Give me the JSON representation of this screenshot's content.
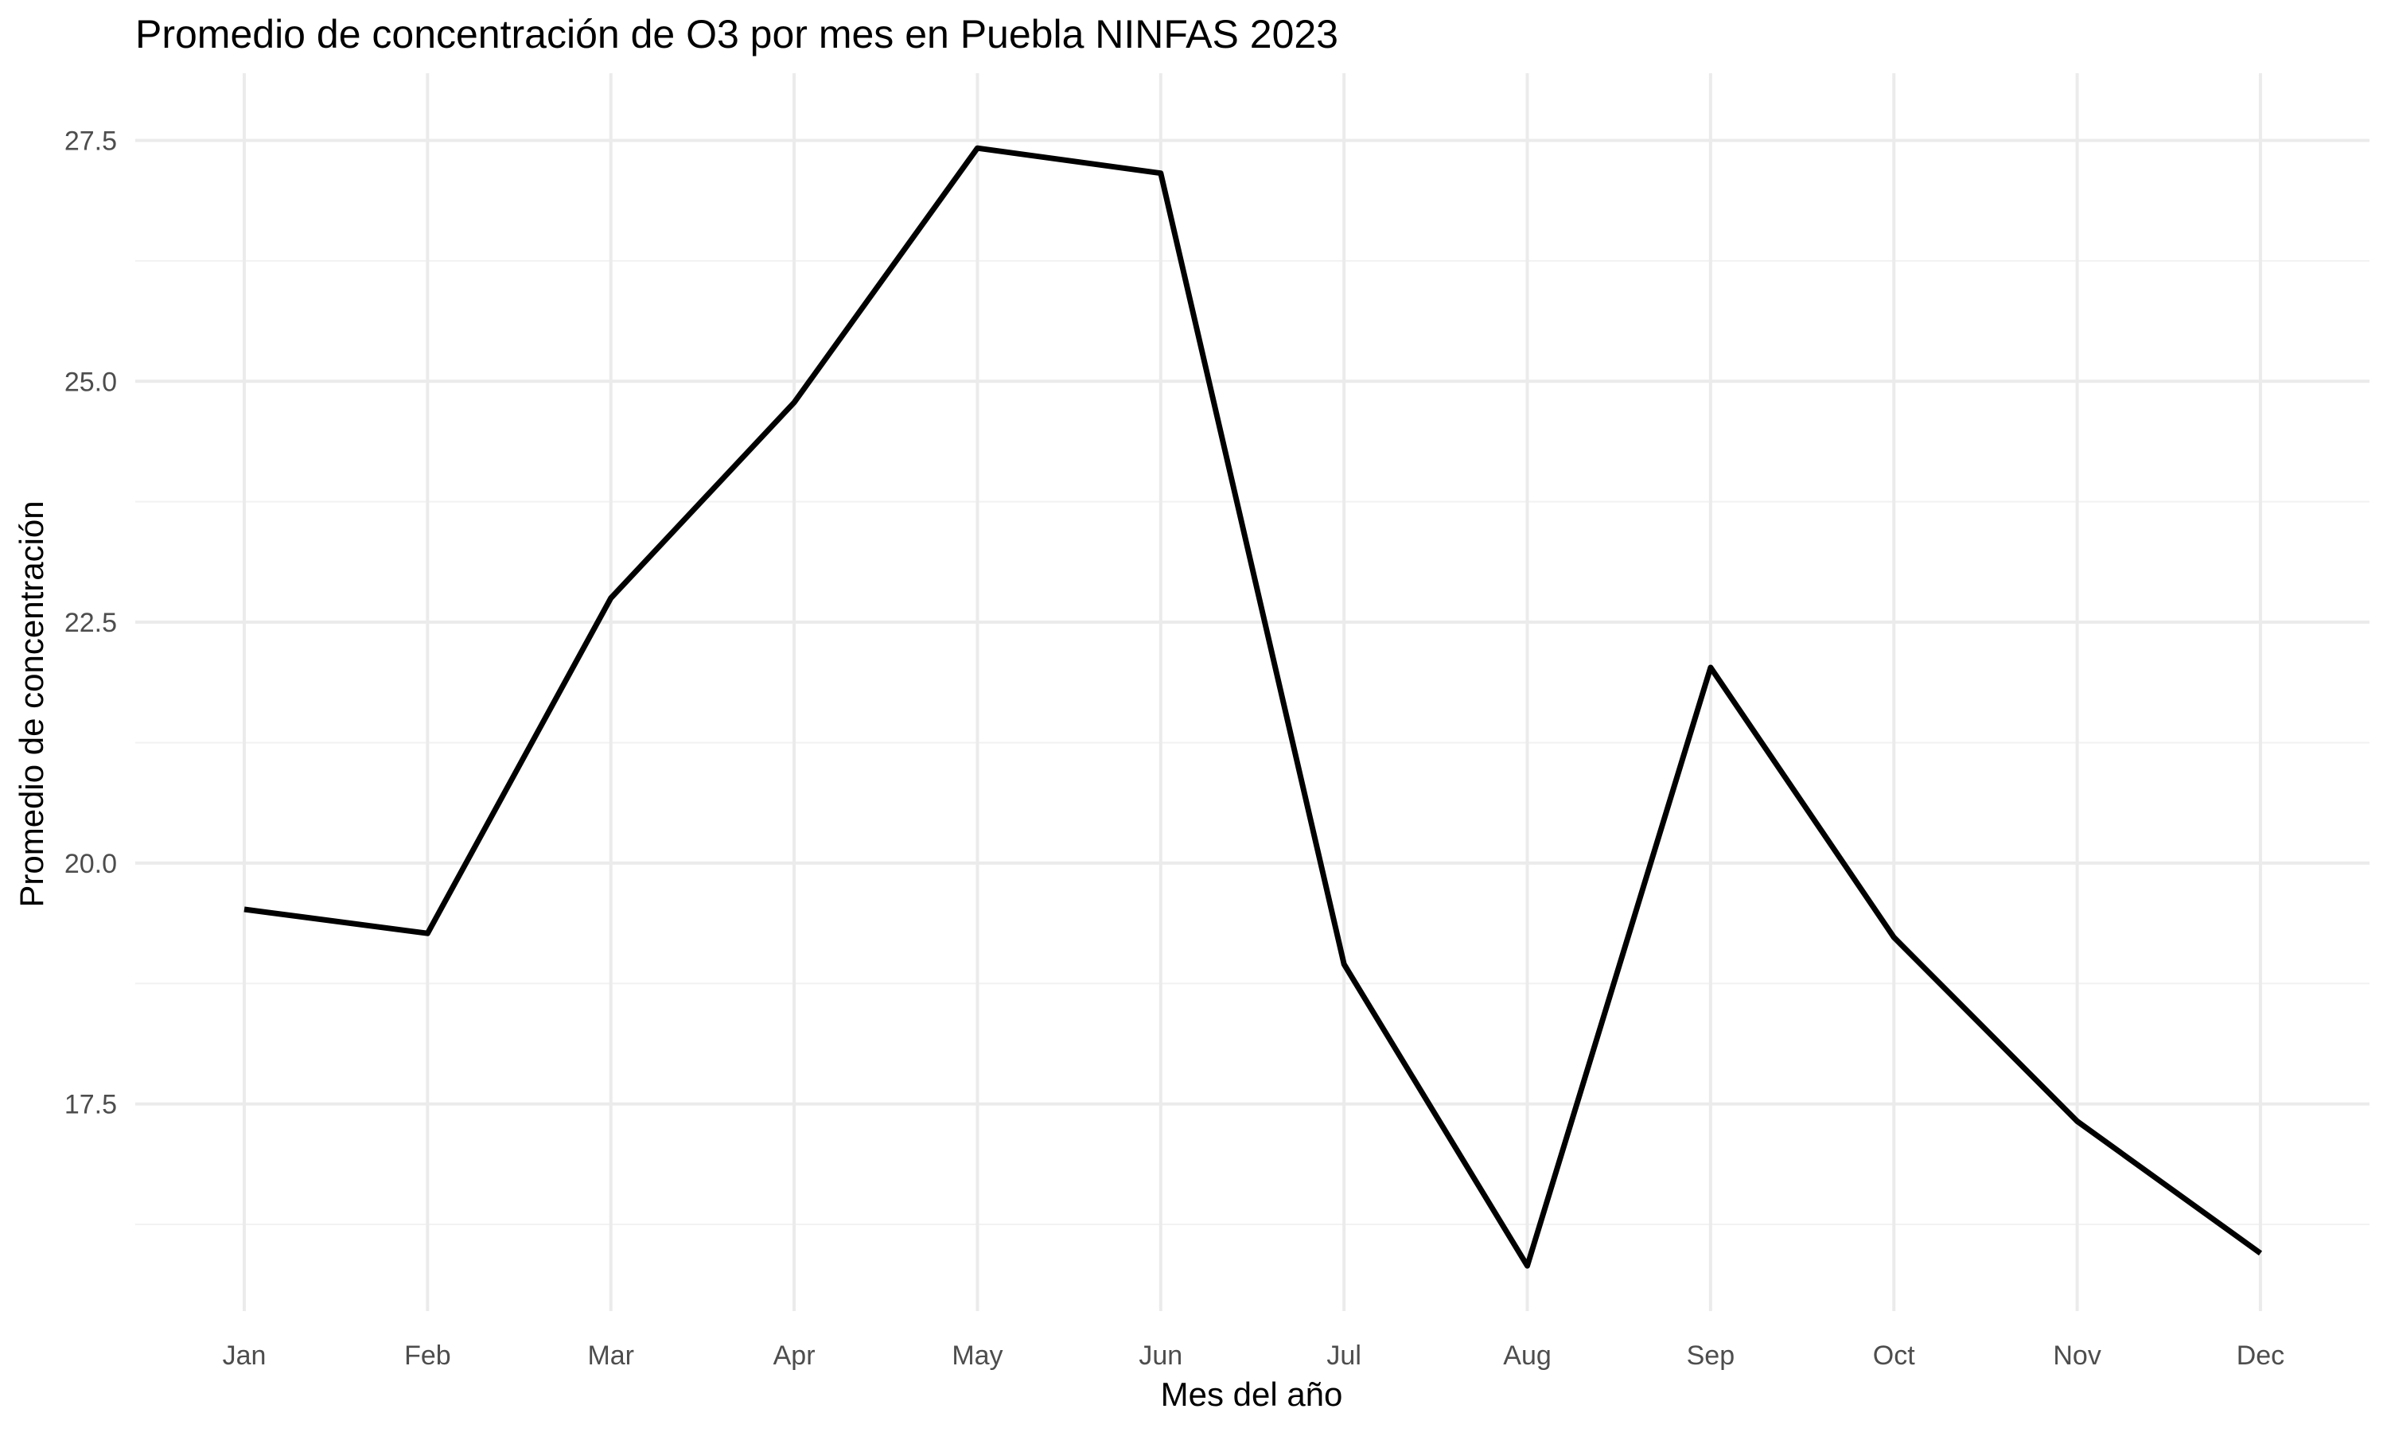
{
  "chart_data": {
    "type": "line",
    "title": "Promedio de concentración de O3 por mes en Puebla NINFAS 2023",
    "xlabel": "Mes del año",
    "ylabel": "Promedio de concentración",
    "categories": [
      "Jan",
      "Feb",
      "Mar",
      "Apr",
      "May",
      "Jun",
      "Jul",
      "Aug",
      "Sep",
      "Oct",
      "Nov",
      "Dec"
    ],
    "series": [
      {
        "values": [
          19.52,
          19.27,
          22.75,
          24.78,
          27.42,
          27.16,
          18.95,
          15.82,
          22.03,
          19.23,
          17.32,
          15.95
        ]
      }
    ],
    "ylim": [
      15.35,
      27.95
    ],
    "yticks": [
      17.5,
      20.0,
      22.5,
      25.0,
      27.5
    ],
    "ytick_labels": [
      "17.5",
      "20.0",
      "22.5",
      "25.0",
      "27.5"
    ],
    "y_minor_ticks": [
      16.25,
      18.75,
      21.25,
      23.75,
      26.25
    ],
    "grid": true,
    "legend": "none",
    "colors": {
      "line": "#000000",
      "grid_major": "#ebebeb",
      "grid_minor": "#f2f2f2",
      "tick_text": "#4d4d4d",
      "background": "#ffffff"
    }
  }
}
